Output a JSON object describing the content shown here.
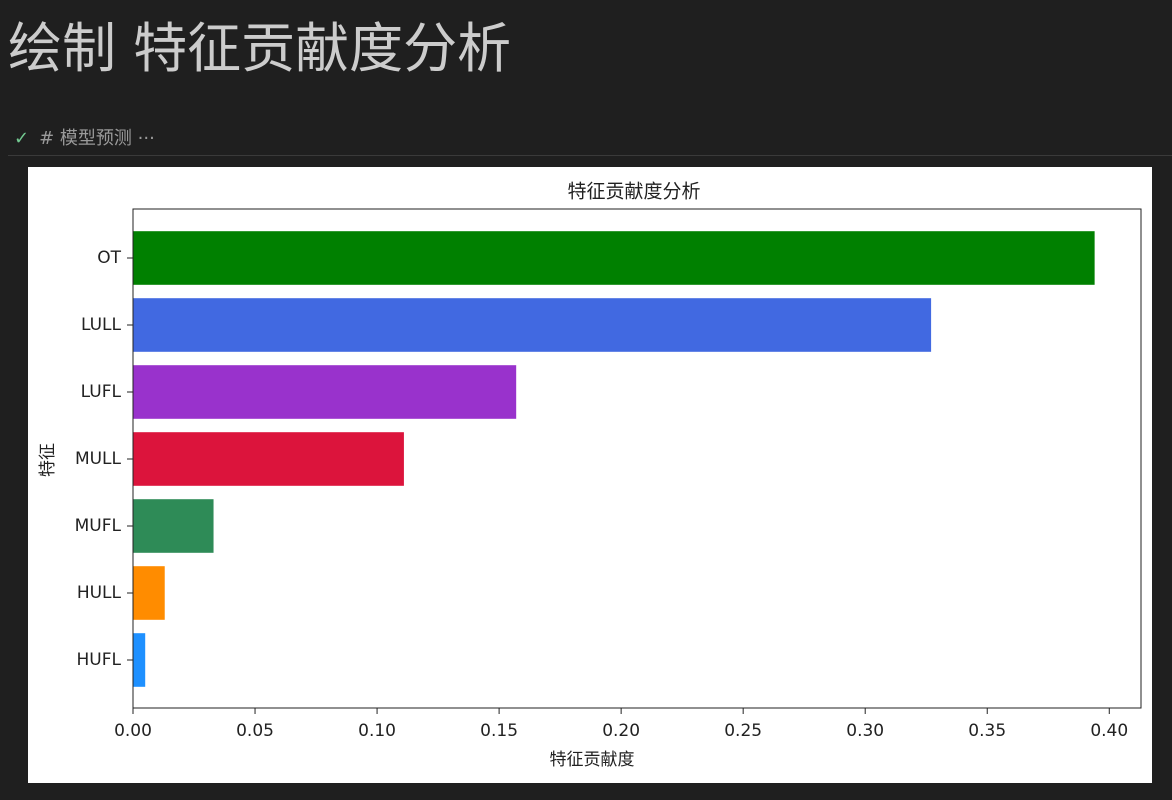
{
  "header": {
    "title": "绘制 特征贡献度分析"
  },
  "cell": {
    "text": "# 模型预测",
    "ellipsis": "···"
  },
  "chart_data": {
    "type": "barh",
    "title": "特征贡献度分析",
    "x_label": "特征贡献度",
    "y_label": "特征",
    "categories": [
      "OT",
      "LULL",
      "LUFL",
      "MULL",
      "MUFL",
      "HULL",
      "HUFL"
    ],
    "values": [
      0.394,
      0.327,
      0.157,
      0.111,
      0.033,
      0.013,
      0.005
    ],
    "colors": [
      "#008000",
      "#4169e1",
      "#9932cc",
      "#dc143c",
      "#2e8b57",
      "#ff8c00",
      "#1e90ff"
    ],
    "xlim": [
      0,
      0.413
    ],
    "xticks": [
      {
        "value": 0,
        "label": "0.00"
      },
      0.05,
      {
        "value": 0.1,
        "label": "0.10"
      },
      0.15,
      {
        "value": 0.2,
        "label": "0.20"
      },
      0.25,
      {
        "value": 0.3,
        "label": "0.30"
      },
      0.35,
      {
        "value": 0.4,
        "label": "0.40"
      }
    ]
  }
}
